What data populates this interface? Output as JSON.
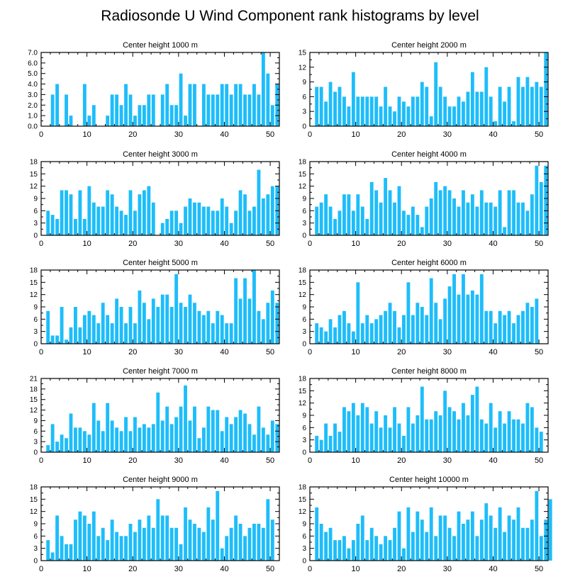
{
  "figure_title": "Radiosonde U Wind Component rank histograms by level",
  "bar_color": "#1ebdfa",
  "chart_data": [
    {
      "type": "bar",
      "title": "Center height 1000 m",
      "xlim": [
        0,
        52
      ],
      "ylim": [
        0,
        7
      ],
      "xticks": [
        0,
        10,
        20,
        30,
        40,
        50
      ],
      "yticks": [
        "0.0",
        "1.0",
        "2.0",
        "3.0",
        "4.0",
        "5.0",
        "6.0",
        "7.0"
      ],
      "values": [
        0,
        0,
        3,
        4,
        0,
        3,
        1,
        0,
        0,
        4,
        1,
        2,
        0,
        0,
        1,
        3,
        3,
        2,
        4,
        3,
        1,
        2,
        2,
        3,
        3,
        0,
        3,
        4,
        2,
        2,
        5,
        1,
        4,
        4,
        0,
        4,
        3,
        3,
        3,
        4,
        4,
        3,
        4,
        4,
        3,
        3,
        4,
        3,
        7,
        5,
        2,
        4
      ]
    },
    {
      "type": "bar",
      "title": "Center height 2000 m",
      "xlim": [
        0,
        52
      ],
      "ylim": [
        0,
        15
      ],
      "xticks": [
        0,
        10,
        20,
        30,
        40,
        50
      ],
      "yticks": [
        "0",
        "3",
        "6",
        "9",
        "12",
        "15"
      ],
      "values": [
        0,
        8,
        8,
        5,
        9,
        7,
        8,
        6,
        4,
        11,
        6,
        6,
        6,
        6,
        6,
        4,
        8,
        4,
        3,
        6,
        5,
        4,
        6,
        6,
        9,
        8,
        2,
        13,
        8,
        6,
        4,
        4,
        6,
        5,
        7,
        11,
        7,
        7,
        12,
        6,
        1,
        8,
        5,
        8,
        1,
        10,
        8,
        10,
        8,
        9,
        8,
        15
      ]
    },
    {
      "type": "bar",
      "title": "Center height 3000 m",
      "xlim": [
        0,
        52
      ],
      "ylim": [
        0,
        18
      ],
      "xticks": [
        0,
        10,
        20,
        30,
        40,
        50
      ],
      "yticks": [
        "0",
        "3",
        "6",
        "9",
        "12",
        "15",
        "18"
      ],
      "values": [
        0,
        6,
        5,
        4,
        11,
        11,
        10,
        4,
        11,
        4,
        12,
        8,
        7,
        7,
        11,
        10,
        7,
        6,
        5,
        11,
        6,
        10,
        11,
        12,
        8,
        0,
        3,
        4,
        6,
        6,
        3,
        7,
        9,
        8,
        8,
        7,
        7,
        6,
        6,
        9,
        7,
        3,
        6,
        11,
        10,
        6,
        7,
        16,
        9,
        10,
        12,
        12
      ]
    },
    {
      "type": "bar",
      "title": "Center height 4000 m",
      "xlim": [
        0,
        52
      ],
      "ylim": [
        0,
        18
      ],
      "xticks": [
        0,
        10,
        20,
        30,
        40,
        50
      ],
      "yticks": [
        "0",
        "3",
        "6",
        "9",
        "12",
        "15",
        "18"
      ],
      "values": [
        0,
        7,
        8,
        10,
        7,
        4,
        6,
        10,
        10,
        6,
        10,
        7,
        4,
        13,
        11,
        8,
        14,
        11,
        8,
        12,
        6,
        5,
        7,
        5,
        2,
        7,
        9,
        13,
        11,
        12,
        11,
        9,
        7,
        11,
        8,
        10,
        7,
        11,
        8,
        8,
        7,
        11,
        2,
        11,
        11,
        8,
        8,
        6,
        10,
        17,
        13,
        17
      ]
    },
    {
      "type": "bar",
      "title": "Center height 5000 m",
      "xlim": [
        0,
        52
      ],
      "ylim": [
        0,
        18
      ],
      "xticks": [
        0,
        10,
        20,
        30,
        40,
        50
      ],
      "yticks": [
        "0",
        "3",
        "6",
        "9",
        "12",
        "15",
        "18"
      ],
      "values": [
        0,
        8,
        2,
        2,
        9,
        1,
        4,
        9,
        4,
        7,
        8,
        7,
        5,
        10,
        7,
        5,
        11,
        9,
        5,
        9,
        5,
        13,
        10,
        6,
        11,
        9,
        12,
        12,
        9,
        17,
        10,
        9,
        12,
        10,
        8,
        7,
        8,
        5,
        8,
        7,
        5,
        5,
        16,
        11,
        16,
        11,
        18,
        8,
        6,
        10,
        13,
        10
      ]
    },
    {
      "type": "bar",
      "title": "Center height 6000 m",
      "xlim": [
        0,
        52
      ],
      "ylim": [
        0,
        18
      ],
      "xticks": [
        0,
        10,
        20,
        30,
        40,
        50
      ],
      "yticks": [
        "0",
        "3",
        "6",
        "9",
        "12",
        "15",
        "18"
      ],
      "values": [
        0,
        5,
        4,
        3,
        6,
        4,
        7,
        8,
        5,
        3,
        15,
        5,
        7,
        5,
        6,
        7,
        8,
        10,
        8,
        4,
        7,
        15,
        7,
        10,
        9,
        7,
        16,
        10,
        6,
        11,
        14,
        17,
        12,
        17,
        12,
        13,
        12,
        17,
        8,
        8,
        5,
        8,
        7,
        8,
        5,
        7,
        8,
        10,
        9,
        11,
        0,
        0
      ]
    },
    {
      "type": "bar",
      "title": "Center height 7000 m",
      "xlim": [
        0,
        52
      ],
      "ylim": [
        0,
        21
      ],
      "xticks": [
        0,
        10,
        20,
        30,
        40,
        50
      ],
      "yticks": [
        "0",
        "3",
        "6",
        "9",
        "12",
        "15",
        "18",
        "21"
      ],
      "values": [
        0,
        2,
        8,
        3,
        5,
        4,
        11,
        7,
        7,
        6,
        5,
        14,
        9,
        6,
        14,
        9,
        7,
        6,
        10,
        6,
        10,
        7,
        8,
        7,
        8,
        17,
        9,
        13,
        8,
        10,
        13,
        19,
        9,
        13,
        4,
        7,
        13,
        12,
        12,
        6,
        10,
        8,
        10,
        12,
        11,
        8,
        5,
        13,
        7,
        5,
        9,
        8
      ]
    },
    {
      "type": "bar",
      "title": "Center height 8000 m",
      "xlim": [
        0,
        52
      ],
      "ylim": [
        0,
        18
      ],
      "xticks": [
        0,
        10,
        20,
        30,
        40,
        50
      ],
      "yticks": [
        "0",
        "3",
        "6",
        "9",
        "12",
        "15",
        "18"
      ],
      "values": [
        0,
        4,
        3,
        7,
        4,
        7,
        5,
        11,
        10,
        12,
        9,
        12,
        11,
        7,
        10,
        6,
        9,
        6,
        11,
        7,
        4,
        11,
        7,
        9,
        16,
        8,
        8,
        10,
        9,
        15,
        11,
        10,
        8,
        12,
        9,
        14,
        16,
        8,
        7,
        12,
        6,
        10,
        7,
        10,
        8,
        8,
        7,
        12,
        11,
        6,
        5,
        0
      ]
    },
    {
      "type": "bar",
      "title": "Center height 9000 m",
      "xlim": [
        0,
        52
      ],
      "ylim": [
        0,
        18
      ],
      "xticks": [
        0,
        10,
        20,
        30,
        40,
        50
      ],
      "yticks": [
        "0",
        "3",
        "6",
        "9",
        "12",
        "15",
        "18"
      ],
      "values": [
        0,
        5,
        2,
        11,
        6,
        4,
        4,
        10,
        12,
        11,
        9,
        12,
        6,
        8,
        5,
        10,
        7,
        6,
        6,
        9,
        7,
        10,
        8,
        11,
        8,
        15,
        11,
        11,
        8,
        8,
        4,
        13,
        10,
        9,
        8,
        7,
        13,
        10,
        17,
        3,
        6,
        8,
        11,
        9,
        6,
        8,
        9,
        9,
        8,
        15,
        10,
        0
      ]
    },
    {
      "type": "bar",
      "title": "Center height 10000 m",
      "xlim": [
        0,
        52
      ],
      "ylim": [
        0,
        18
      ],
      "xticks": [
        0,
        10,
        20,
        30,
        40,
        50
      ],
      "yticks": [
        "0",
        "3",
        "6",
        "9",
        "12",
        "15",
        "18"
      ],
      "values": [
        0,
        13,
        9,
        7,
        8,
        5,
        5,
        6,
        3,
        5,
        9,
        11,
        5,
        8,
        6,
        4,
        6,
        5,
        8,
        12,
        3,
        13,
        7,
        12,
        10,
        7,
        13,
        6,
        11,
        11,
        8,
        6,
        12,
        9,
        10,
        12,
        6,
        10,
        14,
        11,
        8,
        13,
        7,
        11,
        10,
        13,
        8,
        8,
        10,
        17,
        6,
        10,
        15
      ]
    }
  ]
}
